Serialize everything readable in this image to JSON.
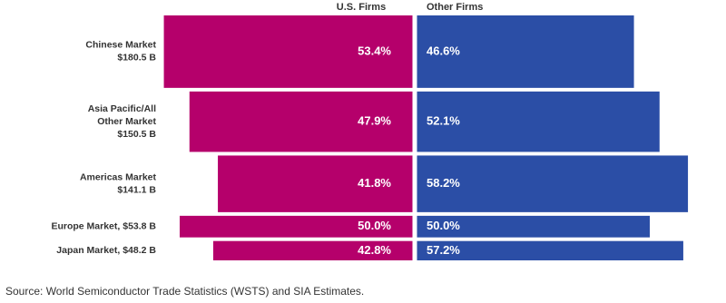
{
  "chart_data": {
    "type": "butterfly",
    "categories": [
      [
        "Chinese Market",
        "$180.5 B"
      ],
      [
        "Asia Pacific/All",
        "Other Market",
        "$150.5 B"
      ],
      [
        "Americas Market",
        "$141.1 B"
      ],
      [
        "Europe Market, $53.8 B"
      ],
      [
        "Japan Market, $48.2 B"
      ]
    ],
    "market_size": [
      180.5,
      150.5,
      141.1,
      53.8,
      48.2
    ],
    "series": [
      {
        "name": "U.S. Firms",
        "color": "#b5006b",
        "values": [
          53.4,
          47.9,
          41.8,
          50.0,
          42.8
        ],
        "value_labels": [
          "53.4%",
          "47.9%",
          "41.8%",
          "50.0%",
          "42.8%"
        ]
      },
      {
        "name": "Other Firms",
        "color": "#2b4ea6",
        "values": [
          46.6,
          52.1,
          58.2,
          50.0,
          57.2
        ],
        "value_labels": [
          "46.6%",
          "52.1%",
          "58.2%",
          "50.0%",
          "57.2%"
        ]
      }
    ],
    "source": "Source: World Semiconductor Trade Statistics (WSTS) and SIA Estimates."
  }
}
